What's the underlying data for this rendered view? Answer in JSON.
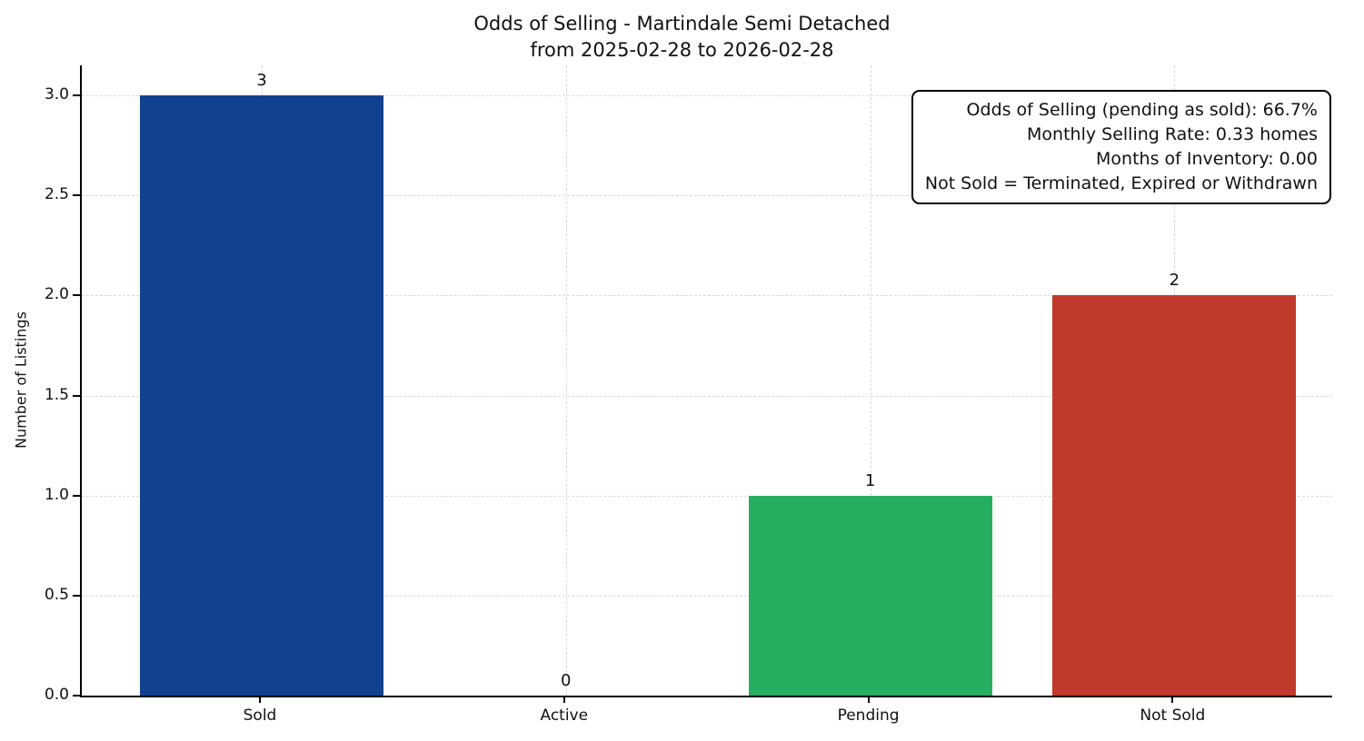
{
  "chart_data": {
    "type": "bar",
    "title": "Odds of Selling - Martindale Semi Detached",
    "subtitle": "from 2025-02-28 to 2026-02-28",
    "ylabel": "Number of Listings",
    "categories": [
      "Sold",
      "Active",
      "Pending",
      "Not Sold"
    ],
    "values": [
      3,
      0,
      1,
      2
    ],
    "value_labels": [
      "3",
      "0",
      "1",
      "2"
    ],
    "bar_colors": [
      "#12428f",
      "#cccccc",
      "#27ae60",
      "#c0392b"
    ],
    "yticks": [
      0.0,
      0.5,
      1.0,
      1.5,
      2.0,
      2.5,
      3.0
    ],
    "ylim": [
      0,
      3.15
    ],
    "grid": "dashed",
    "legend": "none",
    "annotation_lines": [
      "Odds of Selling (pending as sold): 66.7%",
      "Monthly Selling Rate: 0.33 homes",
      "Months of Inventory: 0.00",
      "Not Sold = Terminated, Expired or Withdrawn"
    ]
  }
}
